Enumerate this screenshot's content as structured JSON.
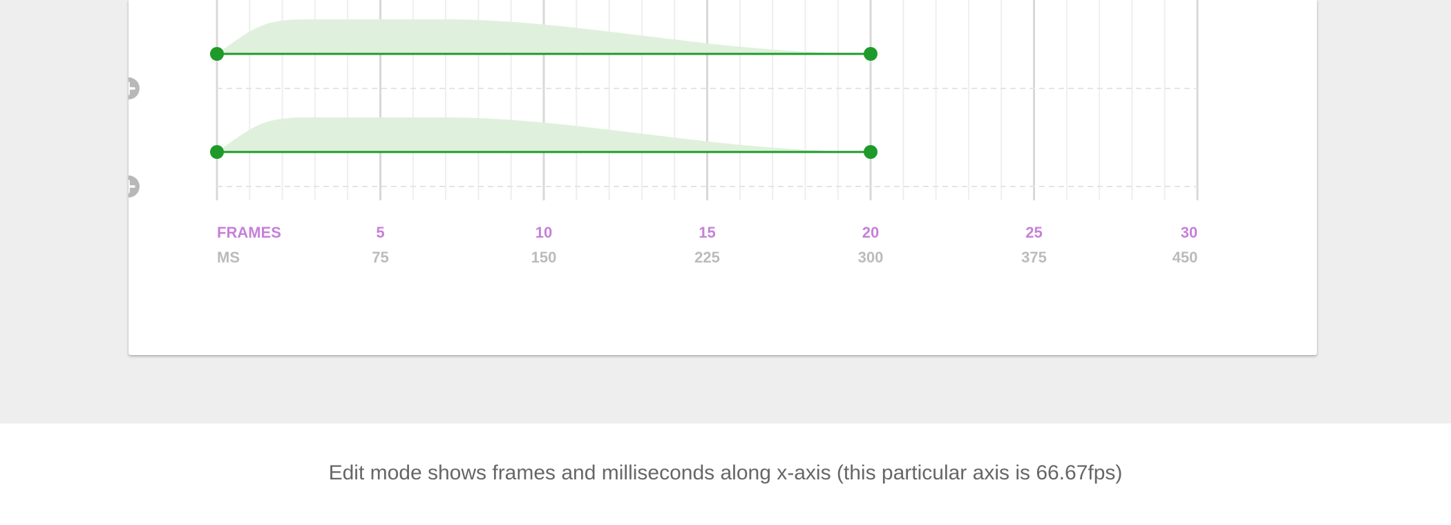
{
  "caption": "Edit mode shows frames and milliseconds along x-axis (this particular axis is 66.67fps)",
  "axis": {
    "frames_label": "FRAMES",
    "ms_label": "MS",
    "frame_ticks": [
      {
        "frame": 5,
        "label": "5"
      },
      {
        "frame": 10,
        "label": "10"
      },
      {
        "frame": 15,
        "label": "15"
      },
      {
        "frame": 20,
        "label": "20"
      },
      {
        "frame": 25,
        "label": "25"
      },
      {
        "frame": 30,
        "label": "30"
      }
    ],
    "ms_ticks": [
      {
        "frame": 5,
        "label": "75"
      },
      {
        "frame": 10,
        "label": "150"
      },
      {
        "frame": 15,
        "label": "225"
      },
      {
        "frame": 20,
        "label": "300"
      },
      {
        "frame": 25,
        "label": "375"
      },
      {
        "frame": 30,
        "label": "450"
      }
    ],
    "frame_range": [
      0,
      30
    ],
    "fps": 66.67
  },
  "animation_rows": [
    {
      "start_frame": 0,
      "end_frame": 20
    },
    {
      "start_frame": 0,
      "end_frame": 20
    }
  ],
  "add_buttons": [
    {
      "icon": "plus-icon"
    },
    {
      "icon": "plus-icon"
    }
  ],
  "colors": {
    "frames_label": "#c77fd9",
    "ms_label": "#bbbbbb",
    "track_line": "#1e9a2a",
    "track_fill": "#dff1dc",
    "grid_minor": "#eeeeee",
    "grid_major": "#d8d8d8",
    "add_button": "#b8b8b8"
  }
}
